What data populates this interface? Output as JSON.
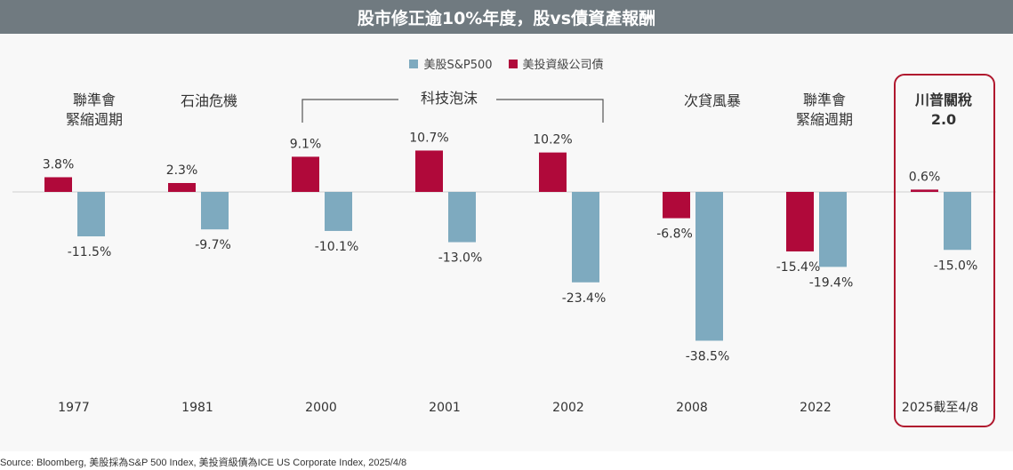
{
  "title": "股市修正逾10%年度，股vs債資產報酬",
  "legend": [
    {
      "label": "美股S&P500",
      "color": "#7eaabf"
    },
    {
      "label": "美投資級公司債",
      "color": "#b0093a"
    }
  ],
  "events": {
    "fed_1977": "聯準會\n緊縮週期",
    "oil_1981": "石油危機",
    "dotcom": "科技泡沫",
    "subprime": "次貸風暴",
    "fed_2022": "聯準會\n緊縮週期",
    "tariff_2025": "川普關稅\n2.0"
  },
  "source": "Source: Bloomberg, 美股採為S&P 500 Index, 美投資級債為ICE US Corporate Index, 2025/4/8",
  "chart_data": {
    "type": "bar",
    "categories": [
      "1977",
      "1981",
      "2000",
      "2001",
      "2002",
      "2008",
      "2022",
      "2025截至4/8"
    ],
    "series": [
      {
        "name": "美投資級公司債",
        "color": "#b0093a",
        "values": [
          3.8,
          2.3,
          9.1,
          10.7,
          10.2,
          -6.8,
          -15.4,
          0.6
        ]
      },
      {
        "name": "美股S&P500",
        "color": "#7eaabf",
        "values": [
          -11.5,
          -9.7,
          -10.1,
          -13.0,
          -23.4,
          -38.5,
          -19.4,
          -15.0
        ]
      }
    ],
    "labels": {
      "bond": [
        "3.8%",
        "2.3%",
        "9.1%",
        "10.7%",
        "10.2%",
        "-6.8%",
        "-15.4%",
        "0.6%"
      ],
      "stock": [
        "-11.5%",
        "-9.7%",
        "-10.1%",
        "-13.0%",
        "-23.4%",
        "-38.5%",
        "-19.4%",
        "-15.0%"
      ]
    }
  }
}
